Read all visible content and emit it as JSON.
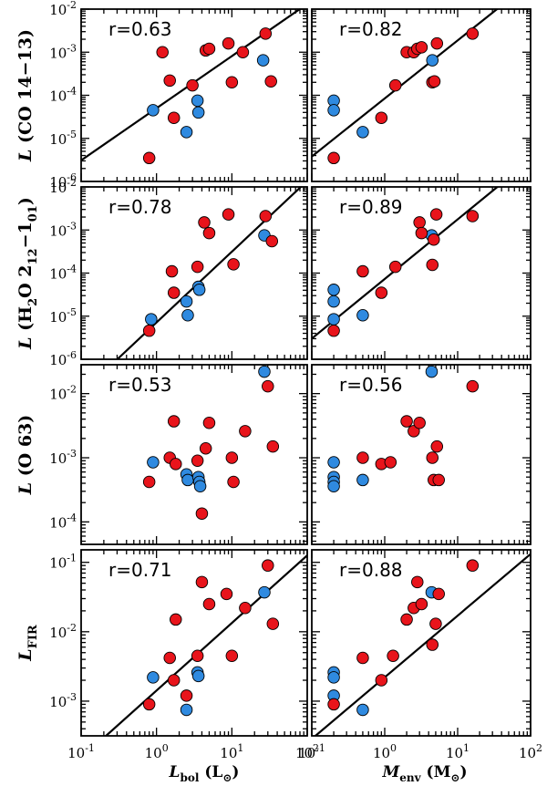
{
  "chart_data": {
    "type": "scatter",
    "title": "",
    "series_colors": {
      "red": "#e8141b",
      "blue": "#2f8ae0"
    },
    "xlabels": {
      "left": {
        "main": "L",
        "sub": "bol",
        "unit": " (L",
        "unit_sub": "⊙",
        "unit_close": ")"
      },
      "right": {
        "main": "M",
        "sub": "env",
        "unit": " (M",
        "unit_sub": "⊙",
        "unit_close": ")"
      }
    },
    "x_ticks": {
      "mantissa": "10",
      "exps": [
        "-1",
        "0",
        "1",
        "2"
      ]
    },
    "columns": [
      {
        "name": "Lbol",
        "xlim_log": [
          -1,
          2
        ]
      },
      {
        "name": "Menv",
        "xlim_log": [
          -1,
          2
        ]
      }
    ],
    "rows": [
      {
        "ylabel": {
          "main": "L",
          "rest": " (CO 14−13)"
        },
        "ylim_log": [
          -6,
          -2
        ],
        "yticks": {
          "mantissa": "10",
          "exps": [
            "-6",
            "-5",
            "-4",
            "-3",
            "-2"
          ]
        },
        "panels": [
          {
            "r": "r=0.63",
            "fit": [
              [
                -1.0,
                -5.51
              ],
              [
                2.0,
                -1.88
              ]
            ],
            "red": [
              [
                0.8,
                3.5e-06
              ],
              [
                1.2,
                0.001
              ],
              [
                1.5,
                0.00022
              ],
              [
                1.7,
                3e-05
              ],
              [
                3.0,
                0.00017
              ],
              [
                4.5,
                0.0011
              ],
              [
                5.0,
                0.0012
              ],
              [
                9.0,
                0.0016
              ],
              [
                10.0,
                0.0002
              ],
              [
                14.0,
                0.001
              ],
              [
                28.0,
                0.0027
              ],
              [
                33.0,
                0.00021
              ]
            ],
            "blue": [
              [
                0.9,
                4.5e-05
              ],
              [
                2.5,
                1.4e-05
              ],
              [
                3.5,
                7.5e-05
              ],
              [
                3.6,
                4e-05
              ],
              [
                26.0,
                0.00065
              ]
            ]
          },
          {
            "r": "r=0.82",
            "fit": [
              [
                -1.0,
                -5.42
              ],
              [
                2.0,
                -1.38
              ]
            ],
            "red": [
              [
                0.2,
                3.5e-06
              ],
              [
                0.9,
                3e-05
              ],
              [
                1.4,
                0.00017
              ],
              [
                2.0,
                0.001
              ],
              [
                2.5,
                0.001
              ],
              [
                2.8,
                0.0012
              ],
              [
                3.2,
                0.0013
              ],
              [
                4.5,
                0.0002
              ],
              [
                4.8,
                0.00021
              ],
              [
                5.2,
                0.0016
              ],
              [
                16.0,
                0.0027
              ]
            ],
            "blue": [
              [
                0.2,
                7.5e-05
              ],
              [
                0.2,
                4.5e-05
              ],
              [
                0.5,
                1.4e-05
              ],
              [
                4.5,
                0.00065
              ]
            ]
          }
        ]
      },
      {
        "ylabel": {
          "main": "L",
          "h2o": true,
          "rest": ""
        },
        "ylim_log": [
          -6,
          -2
        ],
        "yticks": {
          "mantissa": "10",
          "exps": [
            "-6",
            "-5",
            "-4",
            "-3",
            "-2"
          ]
        },
        "panels": [
          {
            "r": "r=0.78",
            "fit": [
              [
                -0.52,
                -6.0
              ],
              [
                2.0,
                -1.86
              ]
            ],
            "red": [
              [
                0.8,
                4.6e-06
              ],
              [
                1.6,
                0.00011
              ],
              [
                1.7,
                3.5e-05
              ],
              [
                3.5,
                0.00014
              ],
              [
                4.3,
                0.0015
              ],
              [
                5.0,
                0.00085
              ],
              [
                9.0,
                0.0023
              ],
              [
                10.5,
                0.00016
              ],
              [
                28.0,
                0.0021
              ],
              [
                34.0,
                0.00055
              ]
            ],
            "blue": [
              [
                0.85,
                8.5e-06
              ],
              [
                2.5,
                2.2e-05
              ],
              [
                2.6,
                1.05e-05
              ],
              [
                3.6,
                4.8e-05
              ],
              [
                3.7,
                4.1e-05
              ],
              [
                27.0,
                0.00075
              ]
            ]
          },
          {
            "r": "r=0.89",
            "fit": [
              [
                -1.0,
                -5.52
              ],
              [
                2.0,
                -1.37
              ]
            ],
            "red": [
              [
                0.2,
                4.6e-06
              ],
              [
                0.5,
                0.00011
              ],
              [
                0.9,
                3.5e-05
              ],
              [
                1.4,
                0.00014
              ],
              [
                3.0,
                0.0015
              ],
              [
                3.2,
                0.00085
              ],
              [
                4.5,
                0.000155
              ],
              [
                4.7,
                0.0006
              ],
              [
                5.1,
                0.0023
              ],
              [
                16.0,
                0.0021
              ]
            ],
            "blue": [
              [
                0.2,
                4.1e-05
              ],
              [
                0.2,
                2.2e-05
              ],
              [
                0.2,
                8.5e-06
              ],
              [
                0.5,
                1.05e-05
              ],
              [
                4.4,
                0.00075
              ]
            ]
          }
        ]
      },
      {
        "ylabel": {
          "main": "L",
          "rest": " (O 63)"
        },
        "ylim_log": [
          -4.35,
          -1.55
        ],
        "yticks": {
          "mantissa": "10",
          "exps": [
            "-4",
            "-3",
            "-2"
          ]
        },
        "panels": [
          {
            "r": "r=0.53",
            "fit": null,
            "red": [
              [
                0.8,
                0.00042
              ],
              [
                1.5,
                0.001
              ],
              [
                1.7,
                0.0037
              ],
              [
                1.8,
                0.0008
              ],
              [
                3.5,
                0.0009
              ],
              [
                4.0,
                0.000135
              ],
              [
                4.5,
                0.0014
              ],
              [
                5.0,
                0.0035
              ],
              [
                10.0,
                0.001
              ],
              [
                10.5,
                0.00042
              ],
              [
                15.0,
                0.0026
              ],
              [
                30.0,
                0.013
              ],
              [
                35.0,
                0.0015
              ]
            ],
            "blue": [
              [
                0.9,
                0.00085
              ],
              [
                2.5,
                0.00055
              ],
              [
                2.6,
                0.00045
              ],
              [
                3.6,
                0.0005
              ],
              [
                3.7,
                0.00042
              ],
              [
                3.8,
                0.00036
              ],
              [
                27.0,
                0.022
              ]
            ]
          },
          {
            "r": "r=0.56",
            "fit": null,
            "red": [
              [
                0.5,
                0.001
              ],
              [
                0.9,
                0.0008
              ],
              [
                1.2,
                0.00085
              ],
              [
                2.0,
                0.0037
              ],
              [
                2.5,
                0.0026
              ],
              [
                3.0,
                0.0035
              ],
              [
                4.5,
                0.001
              ],
              [
                4.7,
                0.00045
              ],
              [
                5.2,
                0.0015
              ],
              [
                5.5,
                0.00045
              ],
              [
                16.0,
                0.013
              ]
            ],
            "blue": [
              [
                0.2,
                0.00085
              ],
              [
                0.2,
                0.0005
              ],
              [
                0.2,
                0.00042
              ],
              [
                0.2,
                0.00036
              ],
              [
                0.5,
                0.00045
              ],
              [
                4.4,
                0.022
              ]
            ]
          }
        ]
      },
      {
        "ylabel": {
          "main": "L",
          "sub": "FIR",
          "rest": ""
        },
        "ylim_log": [
          -3.5,
          -0.82
        ],
        "yticks": {
          "mantissa": "10",
          "exps": [
            "-3",
            "-2",
            "-1"
          ]
        },
        "panels": [
          {
            "r": "r=0.71",
            "fit": [
              [
                -0.67,
                -3.5
              ],
              [
                2.0,
                -0.9
              ]
            ],
            "red": [
              [
                0.8,
                0.0009
              ],
              [
                1.5,
                0.0042
              ],
              [
                1.7,
                0.002
              ],
              [
                1.8,
                0.015
              ],
              [
                2.5,
                0.0012
              ],
              [
                3.5,
                0.0045
              ],
              [
                4.0,
                0.052
              ],
              [
                5.0,
                0.025
              ],
              [
                8.5,
                0.035
              ],
              [
                10.0,
                0.0045
              ],
              [
                15.0,
                0.022
              ],
              [
                30.0,
                0.09
              ],
              [
                35.0,
                0.013
              ]
            ],
            "blue": [
              [
                0.9,
                0.0022
              ],
              [
                2.5,
                0.00075
              ],
              [
                3.5,
                0.0026
              ],
              [
                3.6,
                0.0023
              ],
              [
                27.0,
                0.037
              ]
            ]
          },
          {
            "r": "r=0.88",
            "fit": [
              [
                -0.95,
                -3.5
              ],
              [
                2.0,
                -0.88
              ]
            ],
            "red": [
              [
                0.2,
                0.0009
              ],
              [
                0.5,
                0.0042
              ],
              [
                0.9,
                0.002
              ],
              [
                1.3,
                0.0045
              ],
              [
                2.0,
                0.015
              ],
              [
                2.5,
                0.022
              ],
              [
                2.8,
                0.052
              ],
              [
                3.2,
                0.025
              ],
              [
                4.5,
                0.0065
              ],
              [
                5.0,
                0.013
              ],
              [
                5.5,
                0.035
              ],
              [
                16.0,
                0.09
              ]
            ],
            "blue": [
              [
                0.2,
                0.0026
              ],
              [
                0.2,
                0.0022
              ],
              [
                0.2,
                0.0012
              ],
              [
                0.5,
                0.00075
              ],
              [
                4.4,
                0.037
              ]
            ]
          }
        ]
      }
    ]
  }
}
